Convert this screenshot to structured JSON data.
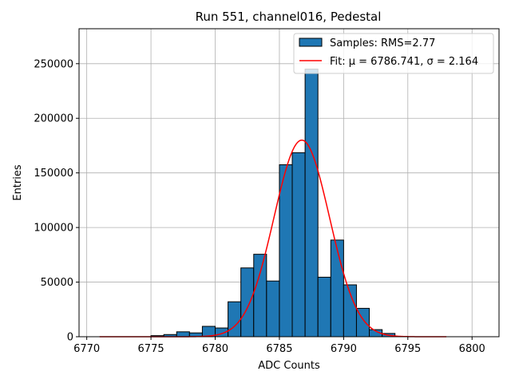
{
  "chart_data": {
    "type": "bar",
    "title": "Run 551, channel016, Pedestal",
    "xlabel": "ADC Counts",
    "ylabel": "Entries",
    "xlim": [
      6769.4,
      6802.1
    ],
    "ylim": [
      0,
      282000
    ],
    "xticks": [
      6770,
      6775,
      6780,
      6785,
      6790,
      6795,
      6800
    ],
    "yticks": [
      0,
      50000,
      100000,
      150000,
      200000,
      250000
    ],
    "grid": true,
    "legend_position": "top-right",
    "bin_width": 1,
    "bins": [
      {
        "x": 6775,
        "value": 1000
      },
      {
        "x": 6776,
        "value": 2000
      },
      {
        "x": 6777,
        "value": 4500
      },
      {
        "x": 6778,
        "value": 3500
      },
      {
        "x": 6779,
        "value": 9500
      },
      {
        "x": 6780,
        "value": 8000
      },
      {
        "x": 6781,
        "value": 32000
      },
      {
        "x": 6782,
        "value": 63000
      },
      {
        "x": 6783,
        "value": 75500
      },
      {
        "x": 6784,
        "value": 51000
      },
      {
        "x": 6785,
        "value": 157500
      },
      {
        "x": 6786,
        "value": 168500
      },
      {
        "x": 6787,
        "value": 245000
      },
      {
        "x": 6788,
        "value": 54500
      },
      {
        "x": 6789,
        "value": 88500
      },
      {
        "x": 6790,
        "value": 47500
      },
      {
        "x": 6791,
        "value": 26000
      },
      {
        "x": 6792,
        "value": 6500
      },
      {
        "x": 6793,
        "value": 3000
      }
    ],
    "fit": {
      "mu": 6786.741,
      "sigma": 2.164,
      "amplitude": 180000,
      "x_range": [
        6771,
        6798
      ]
    },
    "series": [
      {
        "name": "Samples: RMS=2.77",
        "kind": "histogram",
        "color": "#1f77b4"
      },
      {
        "name": "Fit: μ = 6786.741, σ = 2.164",
        "kind": "line",
        "color": "#ff0000"
      }
    ]
  }
}
